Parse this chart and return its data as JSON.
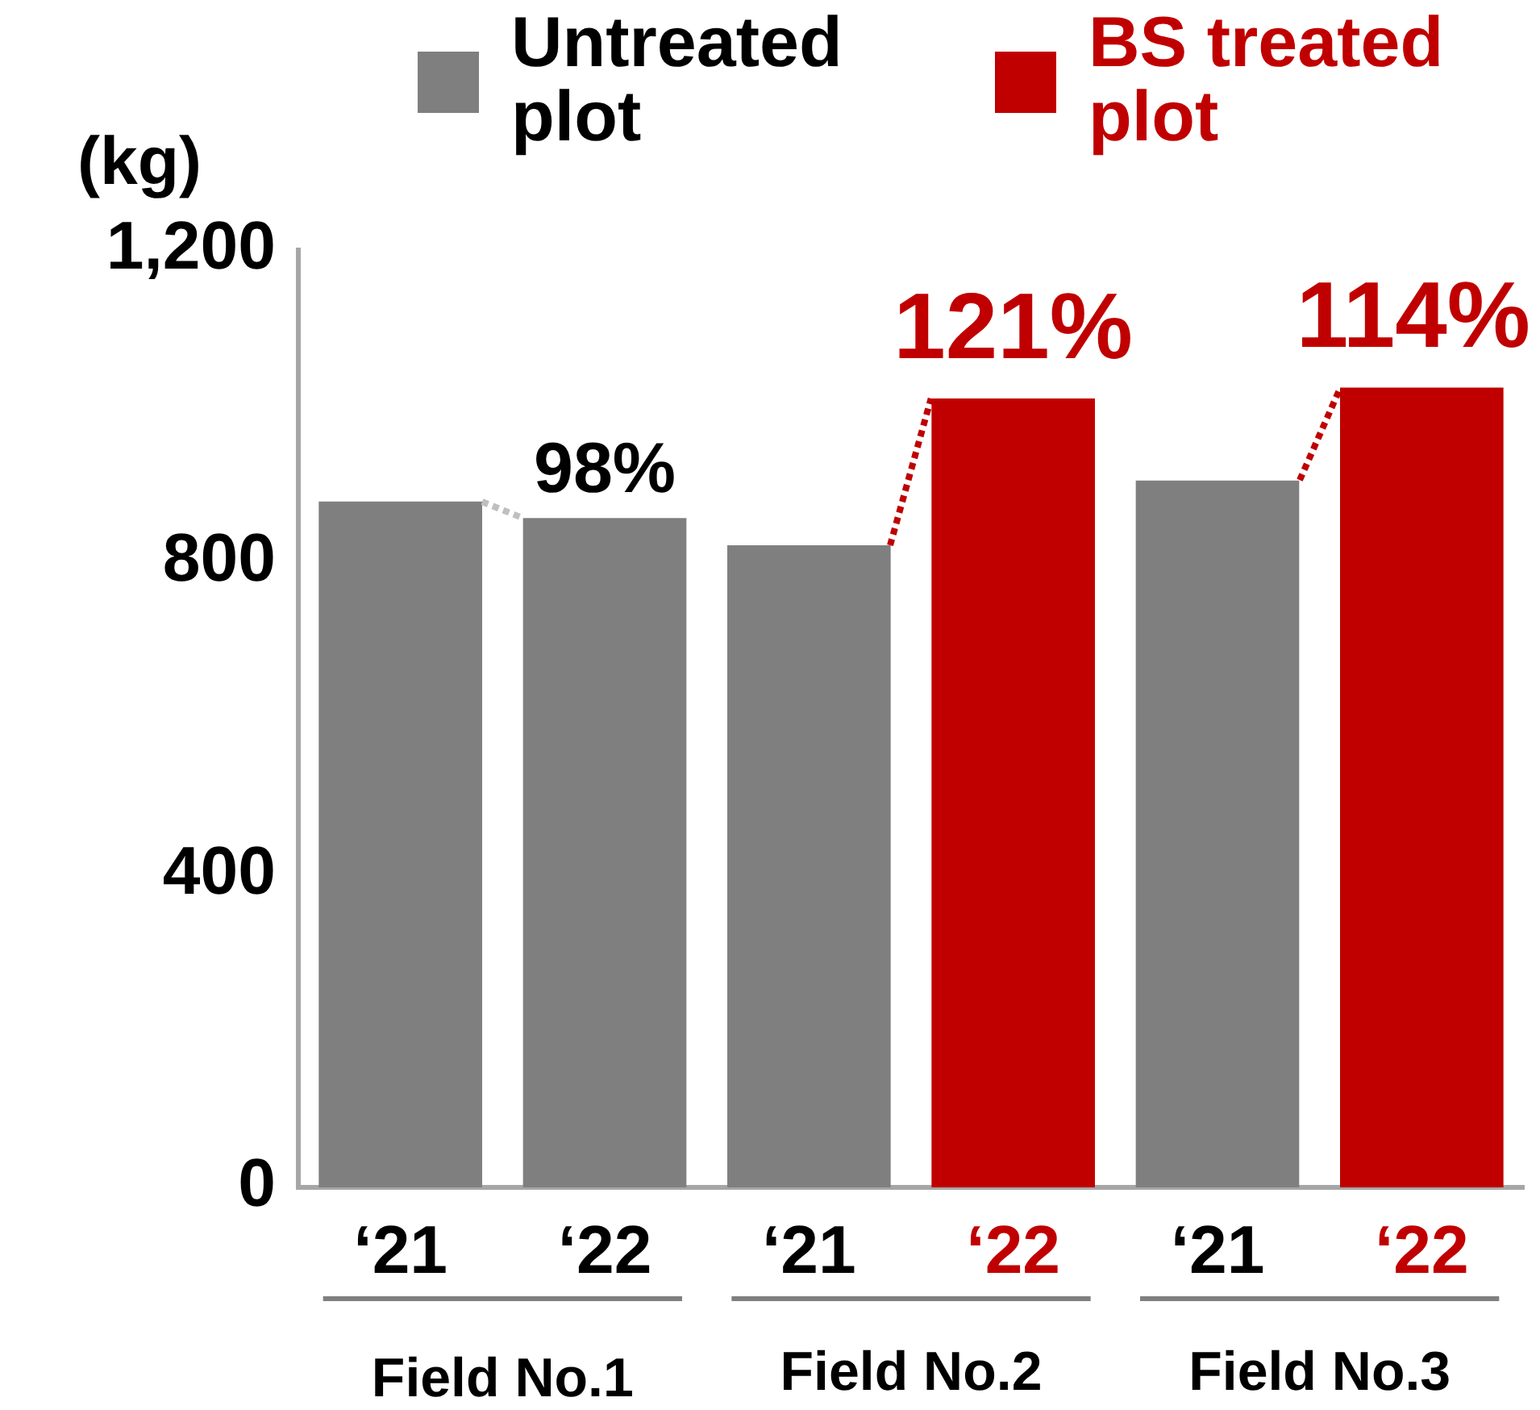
{
  "chart_data": {
    "type": "bar",
    "ylabel": "(kg)",
    "categories": [
      "‘21",
      "‘22",
      "‘21",
      "‘22",
      "‘21",
      "‘22"
    ],
    "series": [
      {
        "name": "Untreated plot",
        "color": "#7f7f7f",
        "values": [
          878,
          857,
          822,
          null,
          905,
          null
        ]
      },
      {
        "name": "BS treated plot",
        "color": "#c00000",
        "values": [
          null,
          null,
          null,
          1010,
          null,
          1024
        ]
      }
    ],
    "ylim": [
      0,
      1200
    ],
    "yticks": [
      0,
      400,
      800,
      {
        "value": 1200,
        "label": "1,200"
      }
    ],
    "grid": false,
    "legend": "top right",
    "annotations": [
      "98%",
      {
        "text": "121%",
        "y": 1010
      },
      {
        "text": "114%",
        "y": 1024
      },
      "Field No.1",
      "Field No.2",
      "Field No.3"
    ]
  }
}
